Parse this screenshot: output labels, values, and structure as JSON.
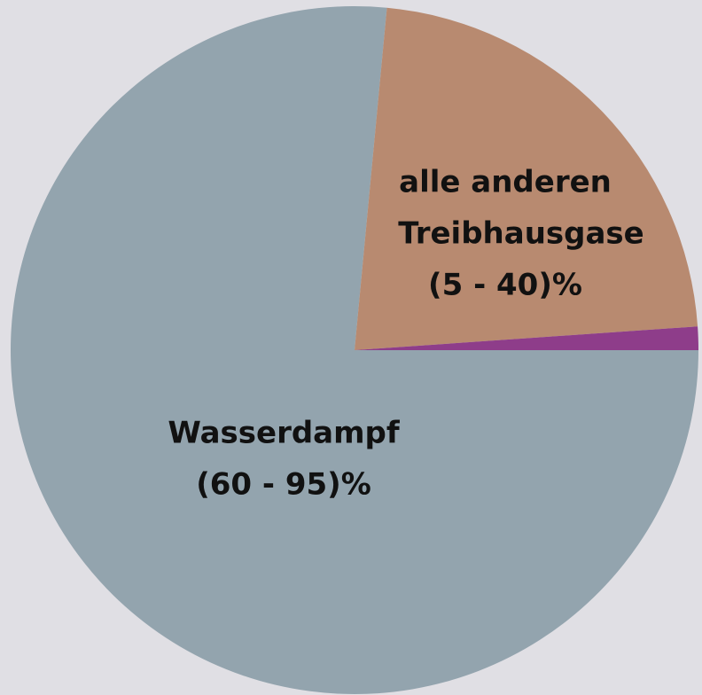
{
  "chart_data": {
    "type": "pie",
    "categories": [
      [
        "Wasserdampf",
        "(60 - 95)%"
      ],
      [
        "alle anderen",
        "Treibhausgase",
        "(5 - 40)%"
      ],
      null
    ],
    "values": [
      76.5,
      22.4,
      1.1
    ],
    "colors": [
      "#93a4ae",
      "#b88a70",
      "#8e3d8a"
    ]
  }
}
